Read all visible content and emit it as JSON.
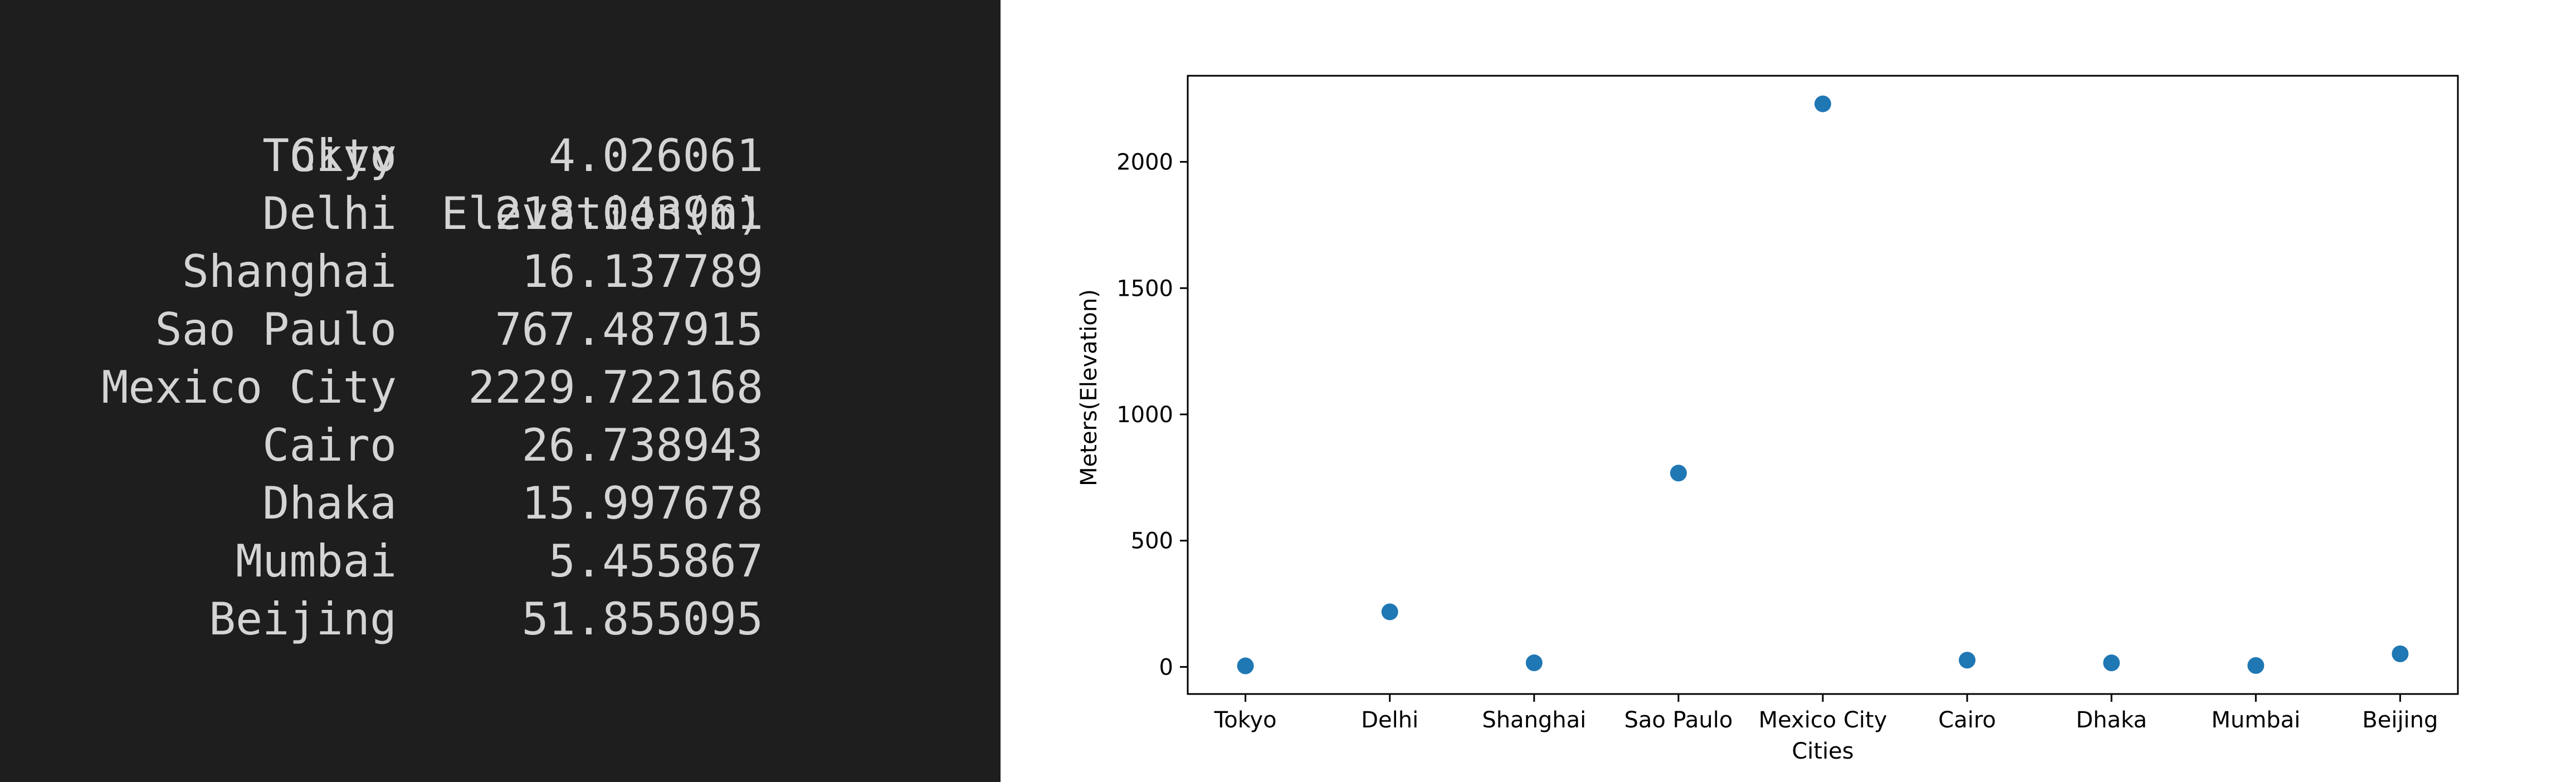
{
  "table": {
    "headers": [
      "City",
      "Elevation(m)"
    ],
    "rows": [
      {
        "city": "Tokyo",
        "elevation": "4.026061"
      },
      {
        "city": "Delhi",
        "elevation": "218.043961"
      },
      {
        "city": "Shanghai",
        "elevation": "16.137789"
      },
      {
        "city": "Sao Paulo",
        "elevation": "767.487915"
      },
      {
        "city": "Mexico City",
        "elevation": "2229.722168"
      },
      {
        "city": "Cairo",
        "elevation": "26.738943"
      },
      {
        "city": "Dhaka",
        "elevation": "15.997678"
      },
      {
        "city": "Mumbai",
        "elevation": "5.455867"
      },
      {
        "city": "Beijing",
        "elevation": "51.855095"
      }
    ]
  },
  "chart_data": {
    "type": "scatter",
    "categories": [
      "Tokyo",
      "Delhi",
      "Shanghai",
      "Sao Paulo",
      "Mexico City",
      "Cairo",
      "Dhaka",
      "Mumbai",
      "Beijing"
    ],
    "values": [
      4.026061,
      218.043961,
      16.137789,
      767.487915,
      2229.722168,
      26.738943,
      15.997678,
      5.455867,
      51.855095
    ],
    "xlabel": "Cities",
    "ylabel": "Meters(Elevation)",
    "ylim": [
      -107.26,
      2340.99
    ],
    "yticks": [
      0,
      500,
      1000,
      1500,
      2000
    ],
    "grid": false,
    "marker_color": "#1f77b4"
  }
}
